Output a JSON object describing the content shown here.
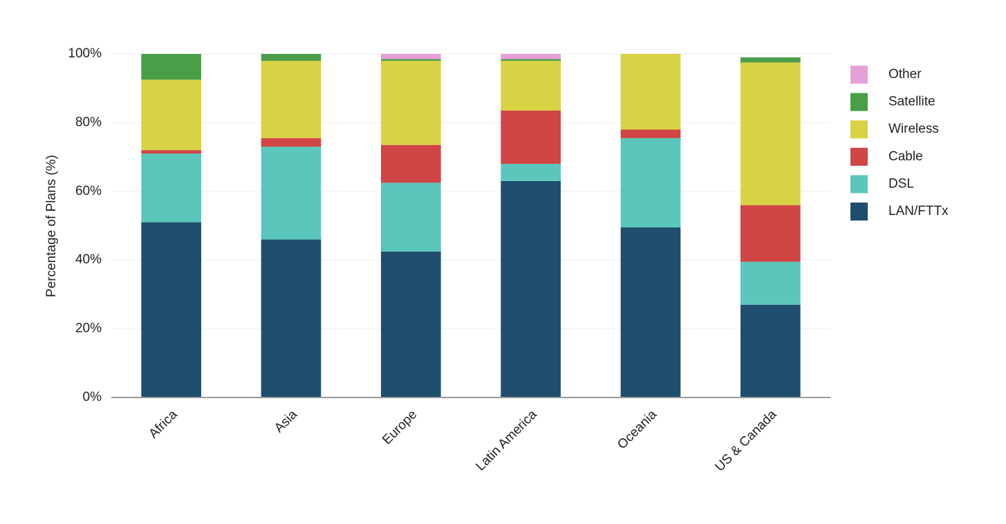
{
  "chart_data": {
    "type": "stacked_bar",
    "y_label": "Percentage of Plans (%)",
    "categories": [
      "Africa",
      "Asia",
      "Europe",
      "Latin America",
      "Oceania",
      "US & Canada"
    ],
    "series": [
      {
        "name": "LAN/FTTx",
        "color": "#1f4e6e",
        "values": [
          51,
          46,
          42.5,
          63,
          49.5,
          27
        ]
      },
      {
        "name": "DSL",
        "color": "#5bc6bc",
        "values": [
          20,
          27,
          20,
          5,
          26,
          12.5
        ]
      },
      {
        "name": "Cable",
        "color": "#d04545",
        "values": [
          1,
          2.5,
          11,
          15.5,
          2.5,
          16.5
        ]
      },
      {
        "name": "Wireless",
        "color": "#d8d245",
        "values": [
          20.5,
          22.5,
          24.5,
          14.5,
          22,
          41.5
        ]
      },
      {
        "name": "Satellite",
        "color": "#4a9e48",
        "values": [
          7.5,
          2,
          0.5,
          0.5,
          0,
          1.5
        ]
      },
      {
        "name": "Other",
        "color": "#e6a0d8",
        "values": [
          0,
          0,
          1.5,
          1.5,
          0,
          0
        ]
      }
    ],
    "ylim": [
      0,
      100
    ],
    "yticks": [
      {
        "value": 0,
        "label": "0%"
      },
      {
        "value": 20,
        "label": "20%"
      },
      {
        "value": 40,
        "label": "40%"
      },
      {
        "value": 60,
        "label": "60%"
      },
      {
        "value": 80,
        "label": "80%"
      },
      {
        "value": 100,
        "label": "100%"
      }
    ],
    "grid": true,
    "legend": "right"
  }
}
